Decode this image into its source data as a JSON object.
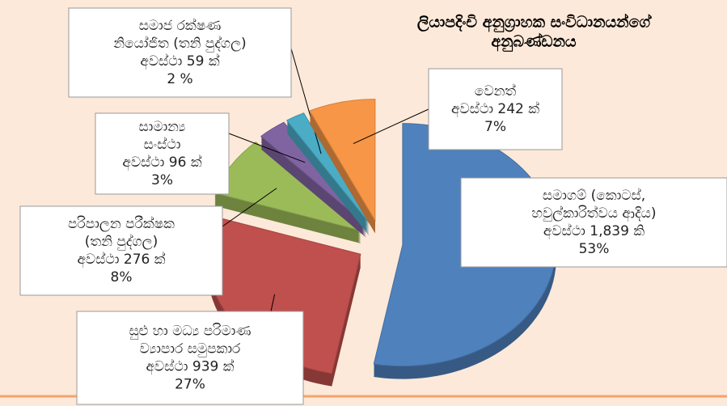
{
  "chart_data": {
    "type": "pie",
    "title": [
      "ලියාපදිංචි අනුග්‍රාහක සංවිධානයන්ගේ",
      "අනුබණ්ඩනය"
    ],
    "categories": [
      [
        "සමාගම් (කොටස්,",
        "හවුල්කාරිත්වය ආදිය)",
        "අවස්ථා 1,839 කි"
      ],
      [
        "සුළු හා මධ්‍ය පරිමාණ",
        "ව්‍යාපාර සමුපකාර",
        "අවස්ථා 939 ක්"
      ],
      [
        "පරිපාලන පරීක්ෂක",
        "(තනි පුද්ගල)",
        "අවස්ථා 276 ක්"
      ],
      [
        "සාමාන්‍ය",
        "සංස්ථා",
        "අවස්ථා 96 ක්"
      ],
      [
        "සමාජ රක්ෂණ",
        "නියෝජිත (තනි පුද්ගල)",
        "අවස්ථා 59 ක්"
      ],
      [
        "වෙනත්",
        "අවස්ථා 242 ක්"
      ]
    ],
    "values": [
      53,
      27,
      8,
      3,
      2,
      7
    ],
    "value_labels": [
      "53%",
      "27%",
      "8%",
      "3%",
      "2 %",
      "7%"
    ],
    "colors": [
      "#4f81bd",
      "#c0504d",
      "#9bbb59",
      "#8064a2",
      "#4bacc6",
      "#f79646"
    ]
  }
}
